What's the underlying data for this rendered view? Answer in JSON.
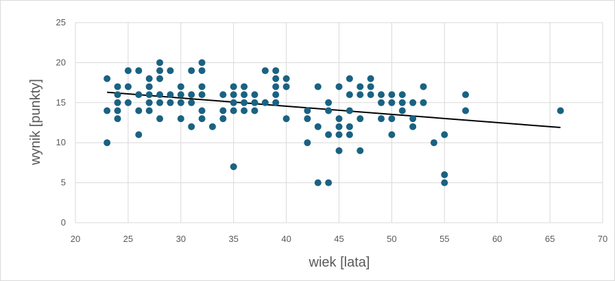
{
  "chart_data": {
    "type": "scatter",
    "xlabel": "wiek [lata]",
    "ylabel": "wynik [punkty]",
    "xlim": [
      20,
      70
    ],
    "ylim": [
      0,
      25
    ],
    "x_ticks": [
      20,
      25,
      30,
      35,
      40,
      45,
      50,
      55,
      60,
      65,
      70
    ],
    "y_ticks": [
      0,
      5,
      10,
      15,
      20,
      25
    ],
    "grid": "horizontal and vertical major gridlines",
    "legend": "none",
    "marker_color": "#1a6282",
    "trendline": {
      "type": "linear",
      "color": "#000000",
      "x": [
        23,
        66
      ],
      "y": [
        16.3,
        11.9
      ]
    },
    "points": [
      [
        23,
        18
      ],
      [
        23,
        14
      ],
      [
        23,
        10
      ],
      [
        24,
        17
      ],
      [
        24,
        16
      ],
      [
        24,
        15
      ],
      [
        24,
        14
      ],
      [
        24,
        13
      ],
      [
        25,
        19
      ],
      [
        25,
        17
      ],
      [
        25,
        15
      ],
      [
        26,
        19
      ],
      [
        26,
        16
      ],
      [
        26,
        14
      ],
      [
        26,
        11
      ],
      [
        27,
        18
      ],
      [
        27,
        17
      ],
      [
        27,
        16
      ],
      [
        27,
        15
      ],
      [
        27,
        14
      ],
      [
        28,
        20
      ],
      [
        28,
        19
      ],
      [
        28,
        18
      ],
      [
        28,
        16
      ],
      [
        28,
        15
      ],
      [
        28,
        13
      ],
      [
        29,
        19
      ],
      [
        29,
        16
      ],
      [
        29,
        15
      ],
      [
        30,
        17
      ],
      [
        30,
        16
      ],
      [
        30,
        15
      ],
      [
        30,
        13
      ],
      [
        31,
        19
      ],
      [
        31,
        16
      ],
      [
        31,
        15
      ],
      [
        31,
        12
      ],
      [
        32,
        20
      ],
      [
        32,
        19
      ],
      [
        32,
        17
      ],
      [
        32,
        16
      ],
      [
        32,
        14
      ],
      [
        32,
        13
      ],
      [
        33,
        12
      ],
      [
        34,
        16
      ],
      [
        34,
        14
      ],
      [
        34,
        13
      ],
      [
        35,
        17
      ],
      [
        35,
        16
      ],
      [
        35,
        15
      ],
      [
        35,
        14
      ],
      [
        35,
        7
      ],
      [
        36,
        17
      ],
      [
        36,
        16
      ],
      [
        36,
        15
      ],
      [
        36,
        14
      ],
      [
        37,
        16
      ],
      [
        37,
        15
      ],
      [
        37,
        14
      ],
      [
        38,
        19
      ],
      [
        38,
        15
      ],
      [
        39,
        19
      ],
      [
        39,
        18
      ],
      [
        39,
        17
      ],
      [
        39,
        16
      ],
      [
        39,
        15
      ],
      [
        40,
        18
      ],
      [
        40,
        17
      ],
      [
        40,
        13
      ],
      [
        42,
        14
      ],
      [
        42,
        13
      ],
      [
        42,
        10
      ],
      [
        43,
        17
      ],
      [
        43,
        12
      ],
      [
        43,
        5
      ],
      [
        44,
        15
      ],
      [
        44,
        14
      ],
      [
        44,
        11
      ],
      [
        44,
        5
      ],
      [
        45,
        17
      ],
      [
        45,
        13
      ],
      [
        45,
        12
      ],
      [
        45,
        11
      ],
      [
        45,
        9
      ],
      [
        46,
        18
      ],
      [
        46,
        16
      ],
      [
        46,
        14
      ],
      [
        46,
        12
      ],
      [
        46,
        11
      ],
      [
        47,
        17
      ],
      [
        47,
        16
      ],
      [
        47,
        13
      ],
      [
        47,
        9
      ],
      [
        48,
        18
      ],
      [
        48,
        17
      ],
      [
        48,
        16
      ],
      [
        49,
        16
      ],
      [
        49,
        15
      ],
      [
        49,
        13
      ],
      [
        50,
        16
      ],
      [
        50,
        15
      ],
      [
        50,
        13
      ],
      [
        50,
        11
      ],
      [
        51,
        16
      ],
      [
        51,
        15
      ],
      [
        51,
        14
      ],
      [
        52,
        15
      ],
      [
        52,
        13
      ],
      [
        52,
        12
      ],
      [
        53,
        17
      ],
      [
        53,
        15
      ],
      [
        54,
        10
      ],
      [
        55,
        11
      ],
      [
        55,
        6
      ],
      [
        55,
        5
      ],
      [
        57,
        16
      ],
      [
        57,
        14
      ],
      [
        66,
        14
      ]
    ]
  }
}
